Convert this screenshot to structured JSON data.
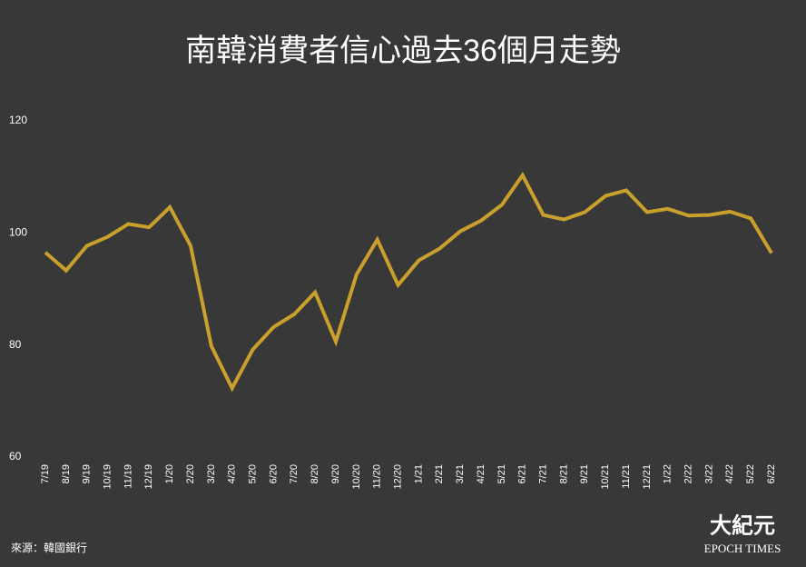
{
  "chart_data": {
    "type": "line",
    "title": "南韓消費者信心過去36個月走勢",
    "categories": [
      "7/19",
      "8/19",
      "9/19",
      "10/19",
      "11/19",
      "12/19",
      "1/20",
      "2/20",
      "3/20",
      "4/20",
      "5/20",
      "6/20",
      "7/20",
      "8/20",
      "9/20",
      "10/20",
      "11/20",
      "12/20",
      "1/21",
      "2/21",
      "3/21",
      "4/21",
      "5/21",
      "6/21",
      "7/21",
      "8/21",
      "9/21",
      "10/21",
      "11/21",
      "12/21",
      "1/22",
      "2/22",
      "3/22",
      "4/22",
      "5/22",
      "6/22"
    ],
    "values": [
      96.5,
      93.3,
      97.7,
      99.3,
      101.6,
      101.0,
      104.6,
      97.7,
      79.8,
      72.3,
      79.2,
      83.2,
      85.5,
      89.4,
      80.6,
      92.6,
      98.8,
      90.7,
      95.1,
      97.2,
      100.3,
      102.2,
      105.0,
      110.3,
      103.2,
      102.4,
      103.7,
      106.6,
      107.6,
      103.7,
      104.3,
      103.1,
      103.2,
      103.8,
      102.6,
      96.4
    ],
    "color": "#c9a02c",
    "ylim": [
      60,
      120
    ],
    "yticks": [
      60,
      80,
      100,
      120
    ],
    "grid": false,
    "source": "來源：韓國銀行",
    "logo": {
      "chinese": "大紀元",
      "english": "EPOCH TIMES"
    }
  }
}
